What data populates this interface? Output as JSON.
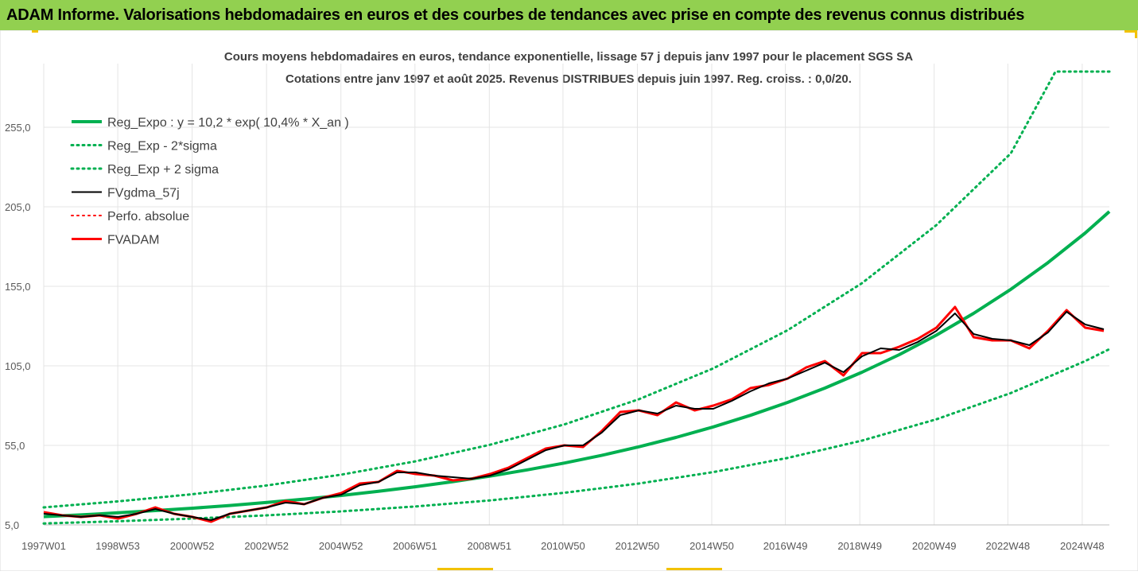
{
  "banner": {
    "title": "ADAM Informe. Valorisations hebdomadaires en euros et des courbes de tendances avec prise en compte des revenus connus distribués"
  },
  "chart_data": {
    "type": "line",
    "title_line1": "Cours moyens hebdomadaires en euros, tendance exponentielle, lissage 57 j depuis janv 1997 pour le placement SGS SA",
    "title_line2": "Cotations entre janv 1997 et août 2025. Revenus DISTRIBUES depuis juin 1997. Reg. croiss. : 0,0/20.",
    "ylim": [
      5,
      295
    ],
    "yticks": [
      5,
      55,
      105,
      155,
      205,
      255
    ],
    "ytick_labels": [
      "5,0",
      "55,0",
      "105,0",
      "155,0",
      "205,0",
      "255,0"
    ],
    "xlim": [
      1997.0,
      2025.65
    ],
    "xticks": [
      1997.0,
      1998.99,
      2000.99,
      2002.99,
      2004.99,
      2006.98,
      2008.98,
      2010.96,
      2012.96,
      2014.96,
      2016.94,
      2018.94,
      2020.94,
      2022.92,
      2024.92
    ],
    "xtick_labels": [
      "1997W01",
      "1998W53",
      "2000W52",
      "2002W52",
      "2004W52",
      "2006W51",
      "2008W51",
      "2010W50",
      "2012W50",
      "2014W50",
      "2016W49",
      "2018W49",
      "2020W49",
      "2022W48",
      "2024W48"
    ],
    "grid": true,
    "legend": {
      "placement": "top-left"
    },
    "series": [
      {
        "name": "Reg_Expo : y = 10,2 * exp( 10,4% *  X_an )",
        "color": "#00b050",
        "style": "solid",
        "width": 4,
        "x": [
          1997,
          1998,
          1999,
          2000,
          2001,
          2002,
          2003,
          2004,
          2005,
          2006,
          2007,
          2008,
          2009,
          2010,
          2011,
          2012,
          2013,
          2014,
          2015,
          2016,
          2017,
          2018,
          2019,
          2020,
          2021,
          2022,
          2023,
          2024,
          2025,
          2025.65
        ],
        "values": [
          10.2,
          11.3,
          12.6,
          14.0,
          15.5,
          17.2,
          19.1,
          21.2,
          23.5,
          26.1,
          29.0,
          32.2,
          35.7,
          39.6,
          43.9,
          48.7,
          54.1,
          60.0,
          66.6,
          73.9,
          82.0,
          91.0,
          101.0,
          112.0,
          124.3,
          138.0,
          153.1,
          169.9,
          188.5,
          202.0
        ]
      },
      {
        "name": "Reg_Exp - 2*sigma",
        "color": "#00b050",
        "style": "dotted",
        "width": 3,
        "x": [
          1997,
          1999,
          2001,
          2003,
          2005,
          2007,
          2009,
          2011,
          2013,
          2015,
          2017,
          2019,
          2021,
          2023,
          2025,
          2025.65
        ],
        "values": [
          5.9,
          7.3,
          9.0,
          11.0,
          13.5,
          16.6,
          20.4,
          25.2,
          31.0,
          38.2,
          47.1,
          58.0,
          71.4,
          87.9,
          108.0,
          115.5
        ]
      },
      {
        "name": "Reg_Exp + 2 sigma",
        "color": "#00b050",
        "style": "dotted",
        "width": 3,
        "x": [
          1997,
          1999,
          2001,
          2003,
          2005,
          2007,
          2009,
          2011,
          2013,
          2015,
          2017,
          2019,
          2021,
          2023,
          2024.2,
          2025.65
        ],
        "values": [
          16.0,
          19.8,
          24.3,
          29.8,
          36.6,
          45.0,
          55.4,
          68.2,
          84.0,
          103.4,
          127.4,
          157.0,
          193.5,
          238.6,
          290.0,
          290.0
        ]
      },
      {
        "name": "FVgdma_57j",
        "color": "#000000",
        "style": "solid",
        "width": 2,
        "x": [
          1997,
          1997.5,
          1998,
          1998.5,
          1999,
          1999.5,
          2000,
          2000.5,
          2001,
          2001.5,
          2002,
          2002.5,
          2003,
          2003.5,
          2004,
          2004.5,
          2005,
          2005.5,
          2006,
          2006.5,
          2007,
          2007.5,
          2008,
          2008.5,
          2009,
          2009.5,
          2010,
          2010.5,
          2011,
          2011.5,
          2012,
          2012.5,
          2013,
          2013.5,
          2014,
          2014.5,
          2015,
          2015.5,
          2016,
          2016.5,
          2017,
          2017.5,
          2018,
          2018.5,
          2019,
          2019.5,
          2020,
          2020.5,
          2021,
          2021.5,
          2022,
          2022.5,
          2023,
          2023.5,
          2024,
          2024.5,
          2025,
          2025.5
        ],
        "values": [
          12,
          11,
          10,
          11,
          10,
          12,
          15,
          12,
          10,
          8,
          12,
          14,
          16,
          19,
          18,
          22,
          24,
          30,
          32,
          38,
          38,
          36,
          35,
          34,
          36,
          40,
          46,
          52,
          55,
          55,
          63,
          74,
          77,
          75,
          80,
          78,
          78,
          83,
          89,
          94,
          97,
          102,
          107,
          101,
          111,
          116,
          115,
          120,
          127,
          138,
          125,
          122,
          121,
          118,
          126,
          139,
          131,
          128
        ]
      },
      {
        "name": "Perfo. absolue",
        "color": "#ff0000",
        "style": "dotted",
        "width": 2,
        "x": [],
        "values": []
      },
      {
        "name": "FVADAM",
        "color": "#ff0000",
        "style": "solid",
        "width": 3,
        "x": [
          1997,
          1997.5,
          1998,
          1998.5,
          1999,
          1999.5,
          2000,
          2000.5,
          2001,
          2001.5,
          2002,
          2002.5,
          2003,
          2003.5,
          2004,
          2004.5,
          2005,
          2005.5,
          2006,
          2006.5,
          2007,
          2007.5,
          2008,
          2008.5,
          2009,
          2009.5,
          2010,
          2010.5,
          2011,
          2011.5,
          2012,
          2012.5,
          2013,
          2013.5,
          2014,
          2014.5,
          2015,
          2015.5,
          2016,
          2016.5,
          2017,
          2017.5,
          2018,
          2018.5,
          2019,
          2019.5,
          2020,
          2020.5,
          2021,
          2021.5,
          2022,
          2022.5,
          2023,
          2023.5,
          2024,
          2024.5,
          2025,
          2025.5
        ],
        "values": [
          13,
          11,
          10,
          11,
          9,
          12,
          16,
          12,
          10,
          7,
          12,
          14,
          16,
          20,
          18,
          22,
          25,
          31,
          32,
          39,
          37,
          36,
          33,
          34,
          37,
          41,
          47,
          53,
          55,
          54,
          64,
          76,
          77,
          74,
          82,
          77,
          80,
          84,
          91,
          93,
          97,
          104,
          108,
          99,
          113,
          113,
          117,
          122,
          129,
          142,
          123,
          121,
          121,
          116,
          127,
          140,
          129,
          127
        ]
      }
    ]
  }
}
